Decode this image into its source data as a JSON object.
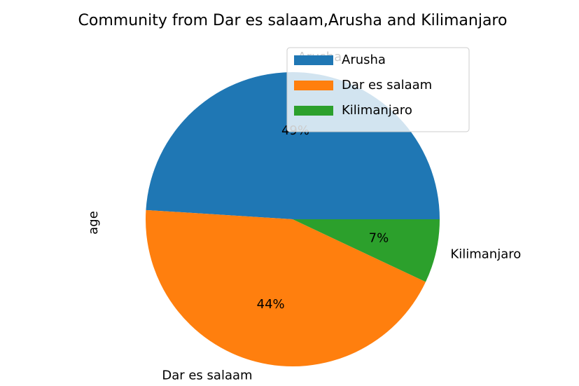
{
  "chart_data": {
    "type": "pie",
    "title": "Community from Dar es salaam,Arusha and Kilimanjaro",
    "ylabel": "age",
    "categories": [
      "Arusha",
      "Dar es salaam",
      "Kilimanjaro"
    ],
    "values": [
      49,
      44,
      7
    ],
    "value_labels": [
      "49%",
      "44%",
      "7%"
    ],
    "colors": [
      "#1f77b4",
      "#ff7f0e",
      "#2ca02c"
    ],
    "legend": "upper right"
  }
}
